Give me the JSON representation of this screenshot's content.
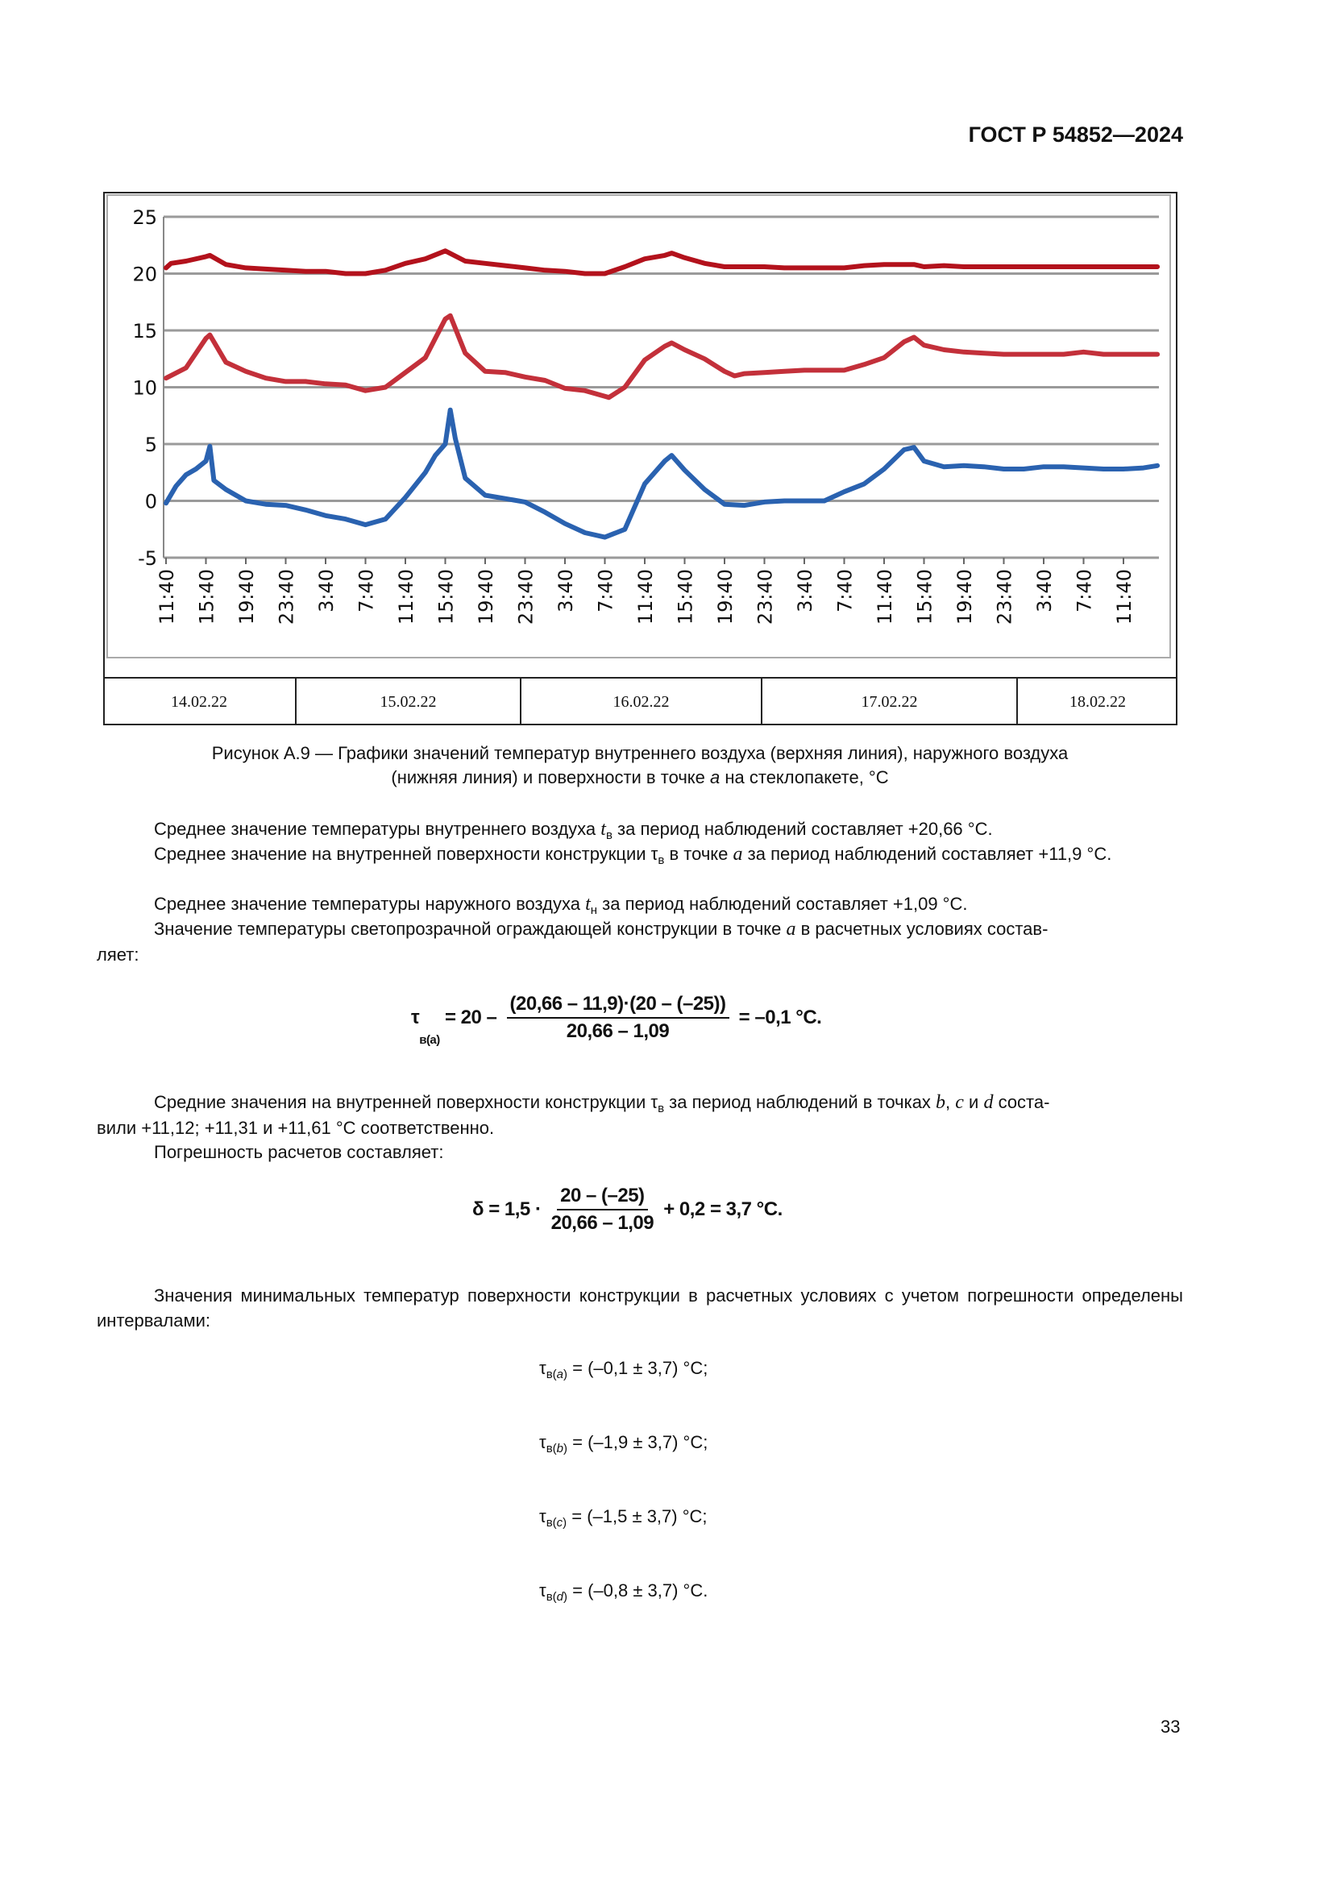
{
  "header": {
    "doc_code": "ГОСТ Р 54852—2024"
  },
  "chart_data": {
    "type": "line",
    "title": "",
    "xlabel": "",
    "ylabel": "",
    "ylim": [
      -5,
      25
    ],
    "yticks": [
      "25",
      "20",
      "15",
      "10",
      "5",
      "0",
      "-5"
    ],
    "xtick_labels": [
      "11:40",
      "15:40",
      "19:40",
      "23:40",
      "3:40",
      "7:40",
      "11:40",
      "15:40",
      "19:40",
      "23:40",
      "3:40",
      "7:40",
      "11:40",
      "15:40",
      "19:40",
      "23:40",
      "3:40",
      "7:40",
      "11:40",
      "15:40",
      "19:40",
      "23:40",
      "3:40",
      "7:40",
      "11:40"
    ],
    "date_labels": [
      "14.02.22",
      "15.02.22",
      "16.02.22",
      "17.02.22",
      "18.02.22"
    ],
    "grid": true,
    "series": [
      {
        "color": "#b3121c",
        "points": [
          [
            "14.02 11:40",
            20.5
          ],
          [
            "14.02 12:10",
            20.9
          ],
          [
            "14.02 13:40",
            21.1
          ],
          [
            "14.02 15:40",
            21.5
          ],
          [
            "14.02 16:04",
            21.6
          ],
          [
            "14.02 17:40",
            20.8
          ],
          [
            "14.02 19:40",
            20.5
          ],
          [
            "14.02 21:40",
            20.4
          ],
          [
            "14.02 23:40",
            20.3
          ],
          [
            "15.02 01:40",
            20.2
          ],
          [
            "15.02 03:40",
            20.2
          ],
          [
            "15.02 05:40",
            20.0
          ],
          [
            "15.02 07:40",
            20.0
          ],
          [
            "15.02 09:40",
            20.3
          ],
          [
            "15.02 11:40",
            20.9
          ],
          [
            "15.02 13:40",
            21.3
          ],
          [
            "15.02 15:40",
            22.0
          ],
          [
            "15.02 17:40",
            21.1
          ],
          [
            "15.02 19:40",
            20.9
          ],
          [
            "15.02 21:40",
            20.7
          ],
          [
            "15.02 23:40",
            20.5
          ],
          [
            "16.02 01:40",
            20.3
          ],
          [
            "16.02 03:40",
            20.2
          ],
          [
            "16.02 05:40",
            20.0
          ],
          [
            "16.02 07:40",
            20.0
          ],
          [
            "16.02 09:40",
            20.6
          ],
          [
            "16.02 11:40",
            21.3
          ],
          [
            "16.02 13:40",
            21.6
          ],
          [
            "16.02 14:22",
            21.8
          ],
          [
            "16.02 15:40",
            21.4
          ],
          [
            "16.02 17:40",
            20.9
          ],
          [
            "16.02 19:40",
            20.6
          ],
          [
            "16.02 21:40",
            20.6
          ],
          [
            "16.02 23:40",
            20.6
          ],
          [
            "17.02 01:40",
            20.5
          ],
          [
            "17.02 03:40",
            20.5
          ],
          [
            "17.02 05:40",
            20.5
          ],
          [
            "17.02 07:40",
            20.5
          ],
          [
            "17.02 09:40",
            20.7
          ],
          [
            "17.02 11:40",
            20.8
          ],
          [
            "17.02 13:40",
            20.8
          ],
          [
            "17.02 14:40",
            20.8
          ],
          [
            "17.02 15:40",
            20.6
          ],
          [
            "17.02 17:40",
            20.7
          ],
          [
            "17.02 19:40",
            20.6
          ],
          [
            "17.02 21:40",
            20.6
          ],
          [
            "17.02 23:40",
            20.6
          ],
          [
            "18.02 01:40",
            20.6
          ],
          [
            "18.02 03:40",
            20.6
          ],
          [
            "18.02 05:40",
            20.6
          ],
          [
            "18.02 07:40",
            20.6
          ],
          [
            "18.02 09:40",
            20.6
          ],
          [
            "18.02 11:40",
            20.6
          ],
          [
            "18.02 15:04",
            20.6
          ]
        ]
      },
      {
        "color": "#c3303a",
        "points": [
          [
            "14.02 11:40",
            10.8
          ],
          [
            "14.02 13:40",
            11.7
          ],
          [
            "14.02 15:40",
            14.3
          ],
          [
            "14.02 16:04",
            14.6
          ],
          [
            "14.02 17:40",
            12.2
          ],
          [
            "14.02 19:40",
            11.4
          ],
          [
            "14.02 21:40",
            10.8
          ],
          [
            "14.02 23:40",
            10.5
          ],
          [
            "15.02 01:40",
            10.5
          ],
          [
            "15.02 03:40",
            10.3
          ],
          [
            "15.02 05:40",
            10.2
          ],
          [
            "15.02 07:40",
            9.7
          ],
          [
            "15.02 09:40",
            10.0
          ],
          [
            "15.02 11:40",
            11.3
          ],
          [
            "15.02 13:40",
            12.6
          ],
          [
            "15.02 15:40",
            16.0
          ],
          [
            "15.02 16:10",
            16.3
          ],
          [
            "15.02 17:40",
            13.0
          ],
          [
            "15.02 19:40",
            11.4
          ],
          [
            "15.02 21:40",
            11.3
          ],
          [
            "15.02 23:40",
            10.9
          ],
          [
            "16.02 01:40",
            10.6
          ],
          [
            "16.02 03:40",
            9.9
          ],
          [
            "16.02 05:40",
            9.7
          ],
          [
            "16.02 07:40",
            9.2
          ],
          [
            "16.02 08:04",
            9.1
          ],
          [
            "16.02 09:40",
            10.0
          ],
          [
            "16.02 11:40",
            12.4
          ],
          [
            "16.02 13:40",
            13.6
          ],
          [
            "16.02 14:22",
            13.9
          ],
          [
            "16.02 15:40",
            13.3
          ],
          [
            "16.02 17:40",
            12.5
          ],
          [
            "16.02 19:40",
            11.4
          ],
          [
            "16.02 20:40",
            11.0
          ],
          [
            "16.02 21:40",
            11.2
          ],
          [
            "16.02 23:40",
            11.3
          ],
          [
            "17.02 01:40",
            11.4
          ],
          [
            "17.02 03:40",
            11.5
          ],
          [
            "17.02 05:40",
            11.5
          ],
          [
            "17.02 07:40",
            11.5
          ],
          [
            "17.02 09:40",
            12.0
          ],
          [
            "17.02 11:40",
            12.6
          ],
          [
            "17.02 13:40",
            14.0
          ],
          [
            "17.02 14:40",
            14.4
          ],
          [
            "17.02 15:40",
            13.7
          ],
          [
            "17.02 17:40",
            13.3
          ],
          [
            "17.02 19:40",
            13.1
          ],
          [
            "17.02 21:40",
            13.0
          ],
          [
            "17.02 23:40",
            12.9
          ],
          [
            "18.02 01:40",
            12.9
          ],
          [
            "18.02 03:40",
            12.9
          ],
          [
            "18.02 05:40",
            12.9
          ],
          [
            "18.02 07:40",
            13.1
          ],
          [
            "18.02 09:40",
            12.9
          ],
          [
            "18.02 11:40",
            12.9
          ],
          [
            "18.02 15:04",
            12.9
          ]
        ]
      },
      {
        "color": "#2a62b0",
        "points": [
          [
            "14.02 11:40",
            -0.2
          ],
          [
            "14.02 12:40",
            1.3
          ],
          [
            "14.02 13:40",
            2.3
          ],
          [
            "14.02 14:40",
            2.8
          ],
          [
            "14.02 15:40",
            3.5
          ],
          [
            "14.02 16:04",
            4.8
          ],
          [
            "14.02 16:28",
            1.8
          ],
          [
            "14.02 17:40",
            1.0
          ],
          [
            "14.02 19:40",
            0.0
          ],
          [
            "14.02 21:40",
            -0.3
          ],
          [
            "14.02 23:40",
            -0.4
          ],
          [
            "15.02 01:40",
            -0.8
          ],
          [
            "15.02 03:40",
            -1.3
          ],
          [
            "15.02 05:40",
            -1.6
          ],
          [
            "15.02 07:40",
            -2.1
          ],
          [
            "15.02 09:40",
            -1.6
          ],
          [
            "15.02 11:40",
            0.3
          ],
          [
            "15.02 13:40",
            2.5
          ],
          [
            "15.02 14:40",
            4.0
          ],
          [
            "15.02 15:40",
            5.0
          ],
          [
            "15.02 16:10",
            8.0
          ],
          [
            "15.02 16:40",
            5.5
          ],
          [
            "15.02 17:40",
            2.0
          ],
          [
            "15.02 19:40",
            0.5
          ],
          [
            "15.02 21:40",
            0.2
          ],
          [
            "15.02 23:40",
            -0.1
          ],
          [
            "16.02 01:40",
            -1.0
          ],
          [
            "16.02 03:40",
            -2.0
          ],
          [
            "16.02 05:40",
            -2.8
          ],
          [
            "16.02 07:40",
            -3.2
          ],
          [
            "16.02 09:40",
            -2.5
          ],
          [
            "16.02 11:40",
            1.5
          ],
          [
            "16.02 13:40",
            3.5
          ],
          [
            "16.02 14:22",
            4.0
          ],
          [
            "16.02 15:40",
            2.7
          ],
          [
            "16.02 17:40",
            1.0
          ],
          [
            "16.02 19:40",
            -0.3
          ],
          [
            "16.02 21:40",
            -0.4
          ],
          [
            "16.02 23:40",
            -0.1
          ],
          [
            "17.02 01:40",
            0.0
          ],
          [
            "17.02 03:40",
            0.0
          ],
          [
            "17.02 05:40",
            0.0
          ],
          [
            "17.02 07:40",
            0.8
          ],
          [
            "17.02 09:40",
            1.5
          ],
          [
            "17.02 11:40",
            2.8
          ],
          [
            "17.02 13:40",
            4.5
          ],
          [
            "17.02 14:40",
            4.7
          ],
          [
            "17.02 15:40",
            3.5
          ],
          [
            "17.02 17:40",
            3.0
          ],
          [
            "17.02 19:40",
            3.1
          ],
          [
            "17.02 21:40",
            3.0
          ],
          [
            "17.02 23:40",
            2.8
          ],
          [
            "18.02 01:40",
            2.8
          ],
          [
            "18.02 03:40",
            3.0
          ],
          [
            "18.02 05:40",
            3.0
          ],
          [
            "18.02 07:40",
            2.9
          ],
          [
            "18.02 09:40",
            2.8
          ],
          [
            "18.02 11:40",
            2.8
          ],
          [
            "18.02 13:40",
            2.9
          ],
          [
            "18.02 15:04",
            3.1
          ]
        ]
      }
    ]
  },
  "caption": {
    "line1": "Рисунок А.9 — Графики значений температур внутреннего воздуха (верхняя линия), наружного воздуха",
    "line2a": "(нижняя  линия) и поверхности в точке ",
    "line2var": "a",
    "line2b": " на стеклопакете, °С"
  },
  "paragraphs": {
    "p1": [
      "Среднее значение температуры внутреннего воздуха ",
      "t",
      "в",
      " за период наблюдений составляет +20,66 °С."
    ],
    "p2": [
      "Среднее значение на внутренней поверхности конструкции ",
      "τ",
      "в",
      " в точке ",
      "a",
      " за период наблюдений составляет +11,9 °С."
    ],
    "p3": [
      "Среднее значение температуры наружного воздуха ",
      "t",
      "н",
      " за период наблюдений составляет +1,09 °С."
    ],
    "p4": [
      "Значение температуры светопрозрачной ограждающей конструкции в точке ",
      "a",
      " в расчетных условиях состав-",
      "ляет:"
    ],
    "p5": [
      "Средние значения на внутренней поверхности конструкции ",
      "τ",
      "в",
      " за период наблюдений в точках ",
      "b",
      ", ",
      "c",
      " и ",
      "d",
      " соста-",
      "вили +11,12; +11,31 и +11,61 °С соответственно."
    ],
    "p6": "Погрешность расчетов составляет:",
    "p7": "Значения минимальных температур поверхности конструкции в расчетных условиях с учетом погрешности определены интервалами:"
  },
  "formula1": {
    "lhs": "τ",
    "lhs_sub": "в(a)",
    "eq1": " = 20 – ",
    "numerator": "(20,66 – 11,9)·(20 – (–25))",
    "denominator": "20,66 – 1,09",
    "result": " = –0,1 °С."
  },
  "formula2": {
    "lhs": "δ = 1,5 · ",
    "numerator": "20 – (–25)",
    "denominator": "20,66 – 1,09",
    "result": " + 0,2 = 3,7 °С."
  },
  "intervals": [
    {
      "sym": "τ",
      "sub": "в(",
      "pt": "a",
      "close": ")",
      "value": " = (–0,1 ± 3,7) °С;"
    },
    {
      "sym": "τ",
      "sub": "в(",
      "pt": "b",
      "close": ")",
      "value": " = (–1,9 ± 3,7) °С;"
    },
    {
      "sym": "τ",
      "sub": "в(",
      "pt": "c",
      "close": ")",
      "value": " = (–1,5 ± 3,7) °С;"
    },
    {
      "sym": "τ",
      "sub": "в(",
      "pt": "d",
      "close": ")",
      "value": " = (–0,8 ± 3,7) °С."
    }
  ],
  "page_number": "33"
}
